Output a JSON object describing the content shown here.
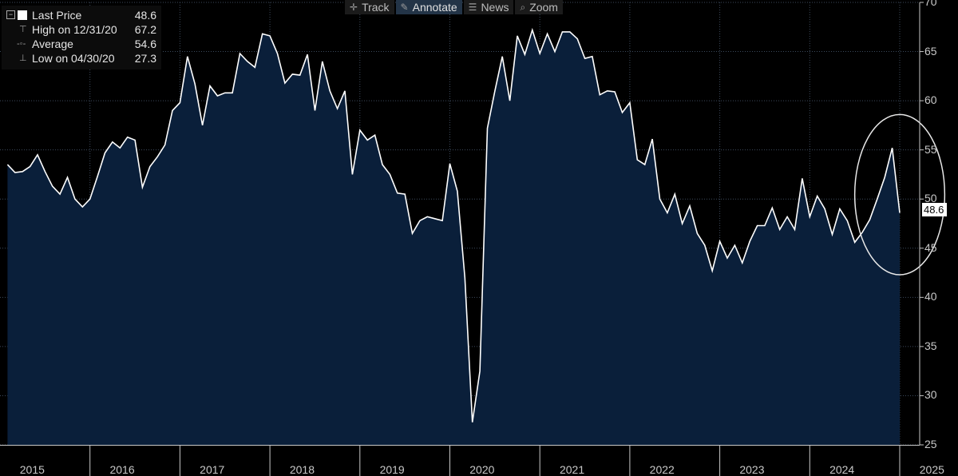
{
  "legend": {
    "last_label": "Last Price",
    "last_value": "48.6",
    "high_label": "High on 12/31/20",
    "high_value": "67.2",
    "avg_label": "Average",
    "avg_value": "54.6",
    "low_label": "Low on 04/30/20",
    "low_value": "27.3"
  },
  "toolbar": {
    "track": "Track",
    "annotate": "Annotate",
    "news": "News",
    "zoom": "Zoom"
  },
  "last_tag": "48.6",
  "colors": {
    "background": "#000000",
    "area_fill": "#0a1f3a",
    "line": "#ffffff",
    "grid": "#3c4a5c"
  },
  "chart_data": {
    "type": "area",
    "ylim": [
      25,
      70
    ],
    "yticks": [
      25,
      30,
      35,
      40,
      45,
      50,
      55,
      60,
      65,
      70
    ],
    "years": [
      "2015",
      "2016",
      "2017",
      "2018",
      "2019",
      "2020",
      "2021",
      "2022",
      "2023",
      "2024",
      "2025"
    ],
    "x_start": "2015-01",
    "values": [
      53.5,
      52.7,
      52.8,
      53.3,
      54.5,
      52.8,
      51.3,
      50.5,
      52.2,
      50.0,
      49.2,
      50.0,
      52.3,
      54.7,
      55.8,
      55.2,
      56.3,
      56.0,
      51.2,
      53.3,
      54.3,
      55.5,
      59.0,
      59.8,
      64.5,
      61.7,
      57.5,
      61.5,
      60.5,
      60.8,
      60.8,
      64.8,
      64.0,
      63.4,
      66.8,
      66.6,
      64.8,
      61.8,
      62.7,
      62.6,
      64.7,
      59.0,
      64.0,
      61.0,
      59.2,
      61.0,
      52.5,
      57.0,
      56.0,
      56.5,
      53.5,
      52.5,
      50.6,
      50.5,
      46.5,
      47.8,
      48.2,
      48.0,
      47.8,
      53.6,
      50.8,
      42.0,
      27.3,
      32.5,
      57.2,
      61.0,
      64.5,
      60.0,
      66.6,
      64.7,
      67.2,
      64.8,
      66.8,
      65.0,
      67.0,
      67.0,
      66.3,
      64.3,
      64.5,
      60.6,
      61.0,
      60.9,
      58.8,
      59.8,
      54.0,
      53.5,
      56.1,
      50.0,
      48.6,
      50.5,
      47.5,
      49.3,
      46.5,
      45.3,
      42.7,
      45.7,
      44.0,
      45.3,
      43.5,
      45.7,
      47.3,
      47.3,
      49.1,
      46.9,
      48.2,
      46.9,
      52.1,
      48.2,
      50.3,
      49.0,
      46.4,
      49.0,
      47.8,
      45.6,
      46.6,
      47.9,
      50.0,
      52.2,
      55.2,
      48.6
    ],
    "annotation": {
      "type": "ellipse",
      "x_start": "2024-06",
      "x_end": "2025-06",
      "y_min": 42.3,
      "y_max": 58.6
    }
  }
}
